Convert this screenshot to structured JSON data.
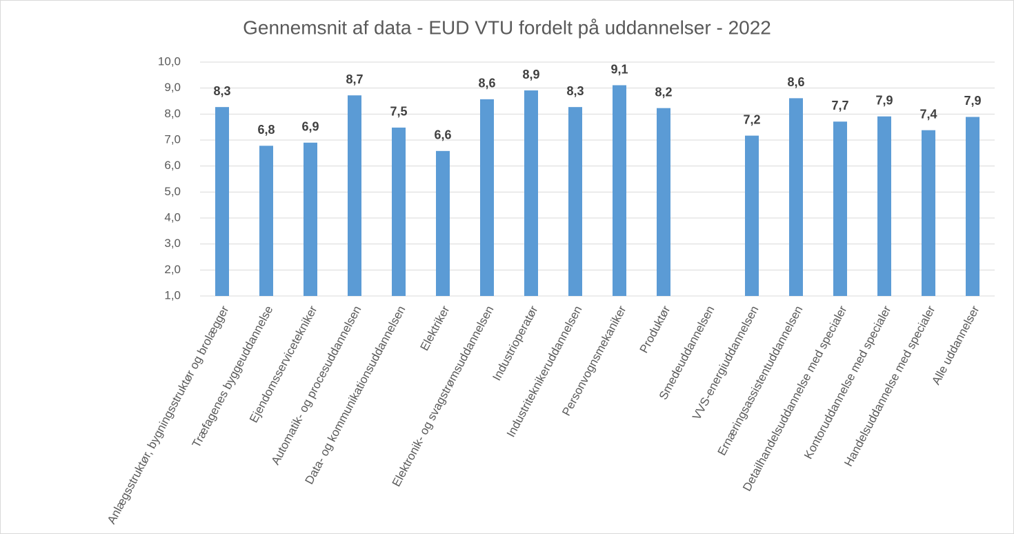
{
  "chart_data": {
    "type": "bar",
    "title": "Gennemsnit af data -  EUD VTU fordelt på uddannelser - 2022",
    "categories": [
      "Anlægsstruktør, bygningsstruktør og brolægger",
      "Træfagenes byggeuddannelse",
      "Ejendomsservicetekniker",
      "Automatik- og procesuddannelsen",
      "Data- og kommunikationsuddannelsen",
      "Elektriker",
      "Elektronik- og svagstrømsuddannelsen",
      "Industrioperatør",
      "Industriteknikeruddannelsen",
      "Personvognsmekaniker",
      "Produktør",
      "Smedeuddannelsen",
      "VVS-energiuddannelsen",
      "Ernæringsassistentuddannelsen",
      "Detailhandelsuddannelse med specialer",
      "Kontoruddannelse med specialer",
      "Handelsuddannelse med specialer",
      "Alle uddannelser"
    ],
    "values": [
      8.27,
      6.78,
      6.9,
      8.72,
      7.48,
      6.58,
      8.57,
      8.91,
      8.27,
      9.11,
      8.23,
      null,
      7.17,
      8.61,
      7.71,
      7.91,
      7.38,
      7.89
    ],
    "value_labels": [
      "8,3",
      "6,8",
      "6,9",
      "8,7",
      "7,5",
      "6,6",
      "8,6",
      "8,9",
      "8,3",
      "9,1",
      "8,2",
      null,
      "7,2",
      "8,6",
      "7,7",
      "7,9",
      "7,4",
      "7,9"
    ],
    "color": "#5b9bd5",
    "ylim": [
      1,
      10
    ],
    "yticks": [
      {
        "value": 1,
        "label": "1,0"
      },
      {
        "value": 2,
        "label": "2,0"
      },
      {
        "value": 3,
        "label": "3,0"
      },
      {
        "value": 4,
        "label": "4,0"
      },
      {
        "value": 5,
        "label": "5,0"
      },
      {
        "value": 6,
        "label": "6,0"
      },
      {
        "value": 7,
        "label": "7,0"
      },
      {
        "value": 8,
        "label": "8,0"
      },
      {
        "value": 9,
        "label": "9,0"
      },
      {
        "value": 10,
        "label": "10,0"
      }
    ],
    "grid": true
  }
}
